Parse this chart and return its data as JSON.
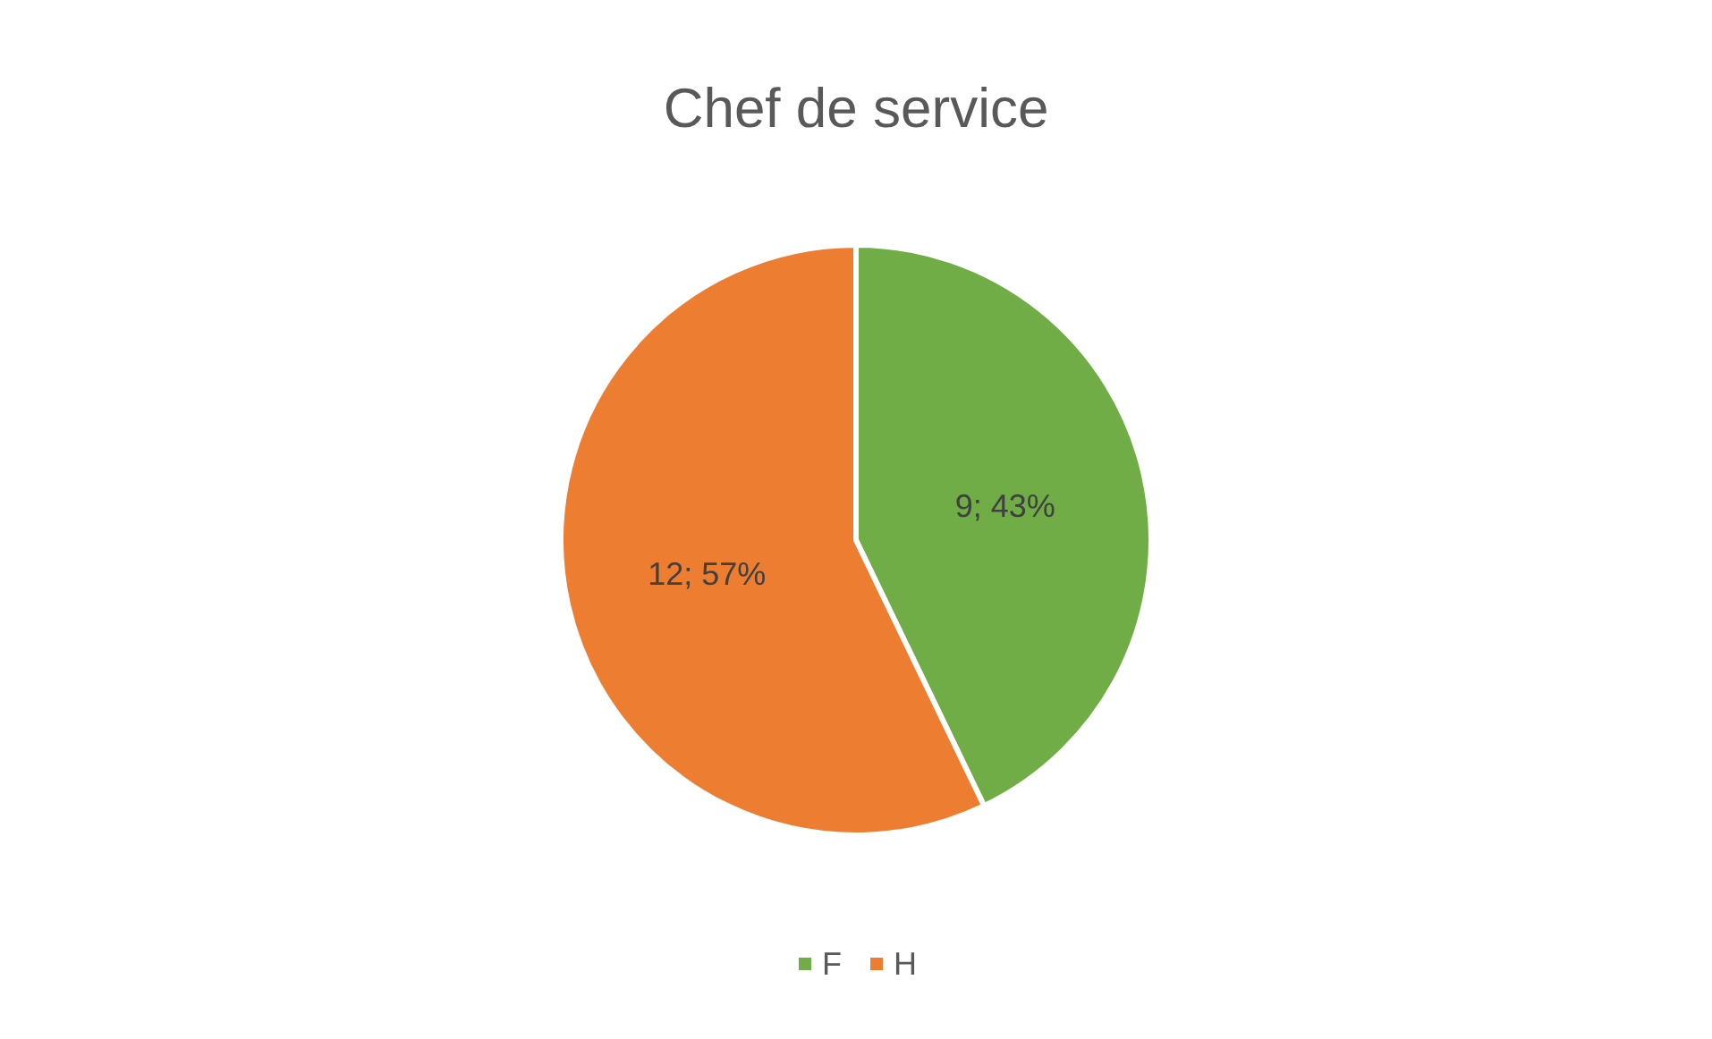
{
  "chart_data": {
    "type": "pie",
    "title": "Chef de service",
    "categories": [
      "F",
      "H"
    ],
    "values": [
      9,
      12
    ],
    "colors": [
      "#70ad47",
      "#ed7d31"
    ],
    "data_labels": true,
    "value_labels": [
      "9; 43%",
      "12; 57%"
    ],
    "legend": "bottom"
  }
}
